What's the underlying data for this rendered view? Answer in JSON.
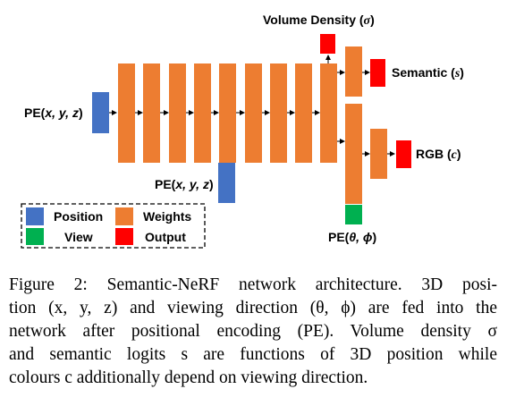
{
  "labels": {
    "volume_density_text": "Volume Density (",
    "volume_density_sym": "σ",
    "semantic_text": "Semantic (",
    "semantic_sym": "s",
    "rgb_text": "RGB (",
    "rgb_sym": "c",
    "close_paren": ")",
    "pe_xyz_left": "PE(",
    "pe_xyz_vars": "x, y, z",
    "pe_view": "PE(",
    "pe_view_vars": "θ, ϕ"
  },
  "legend": [
    {
      "label": "Position",
      "color": "#4472c4"
    },
    {
      "label": "Weights",
      "color": "#ed7d31"
    },
    {
      "label": "View",
      "color": "#00b050"
    },
    {
      "label": "Output",
      "color": "#ff0000"
    }
  ],
  "colors": {
    "position": "#4472c4",
    "weights": "#ed7d31",
    "view": "#00b050",
    "output": "#ff0000"
  },
  "caption": {
    "lines": [
      "Figure 2: Semantic-NeRF network architecture. 3D posi-",
      "tion (x, y, z) and viewing direction (θ, ϕ) are fed into the",
      "network after positional encoding (PE). Volume density σ",
      "and semantic logits s are functions of 3D position while",
      "colours c additionally depend on viewing direction."
    ]
  }
}
